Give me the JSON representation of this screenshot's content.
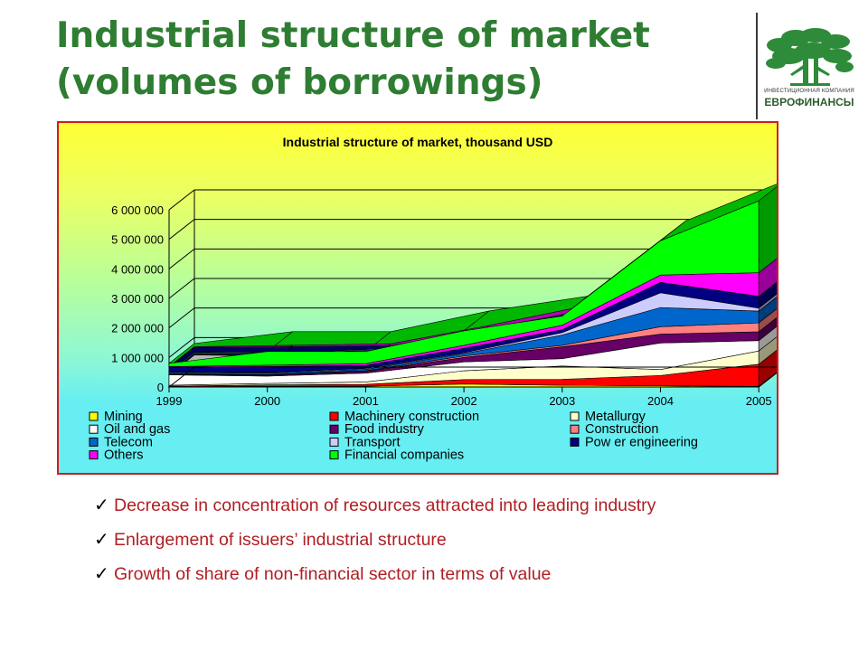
{
  "slide": {
    "title_line1": "Industrial structure of market",
    "title_line2": "(volumes of borrowings)"
  },
  "logo": {
    "caption_small": "ИНВЕСТИЦИОННАЯ КОМПАНИЯ",
    "caption_big": "ЕВРОФИНАНСЫ",
    "tree_color": "#2e8b3a"
  },
  "bullets": [
    "Decrease in concentration of resources attracted into leading industry",
    "Enlargement of issuers’ industrial structure",
    "Growth of share of non-financial sector in terms of value"
  ],
  "colors": {
    "title": "#2e7d32",
    "bullet_text": "#b01e24",
    "frame_border": "#cc1f1f"
  },
  "chart_data": {
    "type": "area",
    "stacked": true,
    "three_d": true,
    "title": "Industrial structure of market, thousand USD",
    "categories": [
      "1999",
      "2000",
      "2001",
      "2002",
      "2003",
      "2004",
      "2005"
    ],
    "y_ticks": [
      "0",
      "1 000 000",
      "2 000 000",
      "3 000 000",
      "4 000 000",
      "5 000 000",
      "6 000 000"
    ],
    "ylim": [
      0,
      6000000
    ],
    "gridlines": true,
    "legend_position": "bottom",
    "series": [
      {
        "name": "Mining",
        "color": "#ffff00",
        "values": [
          10000,
          20000,
          30000,
          100000,
          60000,
          40000,
          20000
        ]
      },
      {
        "name": "Machinery construction",
        "color": "#ff0000",
        "values": [
          20000,
          50000,
          60000,
          150000,
          200000,
          350000,
          750000
        ]
      },
      {
        "name": "Metallurgy",
        "color": "#ffffcc",
        "values": [
          30000,
          50000,
          80000,
          300000,
          450000,
          200000,
          450000
        ]
      },
      {
        "name": "Oil and gas",
        "color": "#ffffff",
        "values": [
          350000,
          250000,
          300000,
          300000,
          250000,
          900000,
          350000
        ]
      },
      {
        "name": "Food industry",
        "color": "#660066",
        "values": [
          20000,
          30000,
          60000,
          150000,
          400000,
          300000,
          300000
        ]
      },
      {
        "name": "Construction",
        "color": "#ff8080",
        "values": [
          20000,
          20000,
          20000,
          50000,
          50000,
          250000,
          300000
        ]
      },
      {
        "name": "Telecom",
        "color": "#0066cc",
        "values": [
          50000,
          50000,
          50000,
          80000,
          350000,
          650000,
          400000
        ]
      },
      {
        "name": "Transport",
        "color": "#ccccff",
        "values": [
          20000,
          20000,
          30000,
          30000,
          80000,
          500000,
          100000
        ]
      },
      {
        "name": "Pow er engineering",
        "color": "#000080",
        "values": [
          150000,
          200000,
          100000,
          150000,
          100000,
          350000,
          400000
        ]
      },
      {
        "name": "Others",
        "color": "#ff00ff",
        "values": [
          20000,
          50000,
          60000,
          100000,
          150000,
          250000,
          800000
        ]
      },
      {
        "name": "Financial companies",
        "color": "#00ff00",
        "values": [
          110000,
          460000,
          410000,
          490000,
          310000,
          1160000,
          2430000
        ]
      }
    ],
    "legend_rows": [
      [
        "Mining",
        "Machinery construction",
        "Metallurgy"
      ],
      [
        "Oil and gas",
        "Food industry",
        "Construction"
      ],
      [
        "Telecom",
        "Transport",
        "Pow er engineering"
      ],
      [
        "Others",
        "Financial companies"
      ]
    ]
  }
}
